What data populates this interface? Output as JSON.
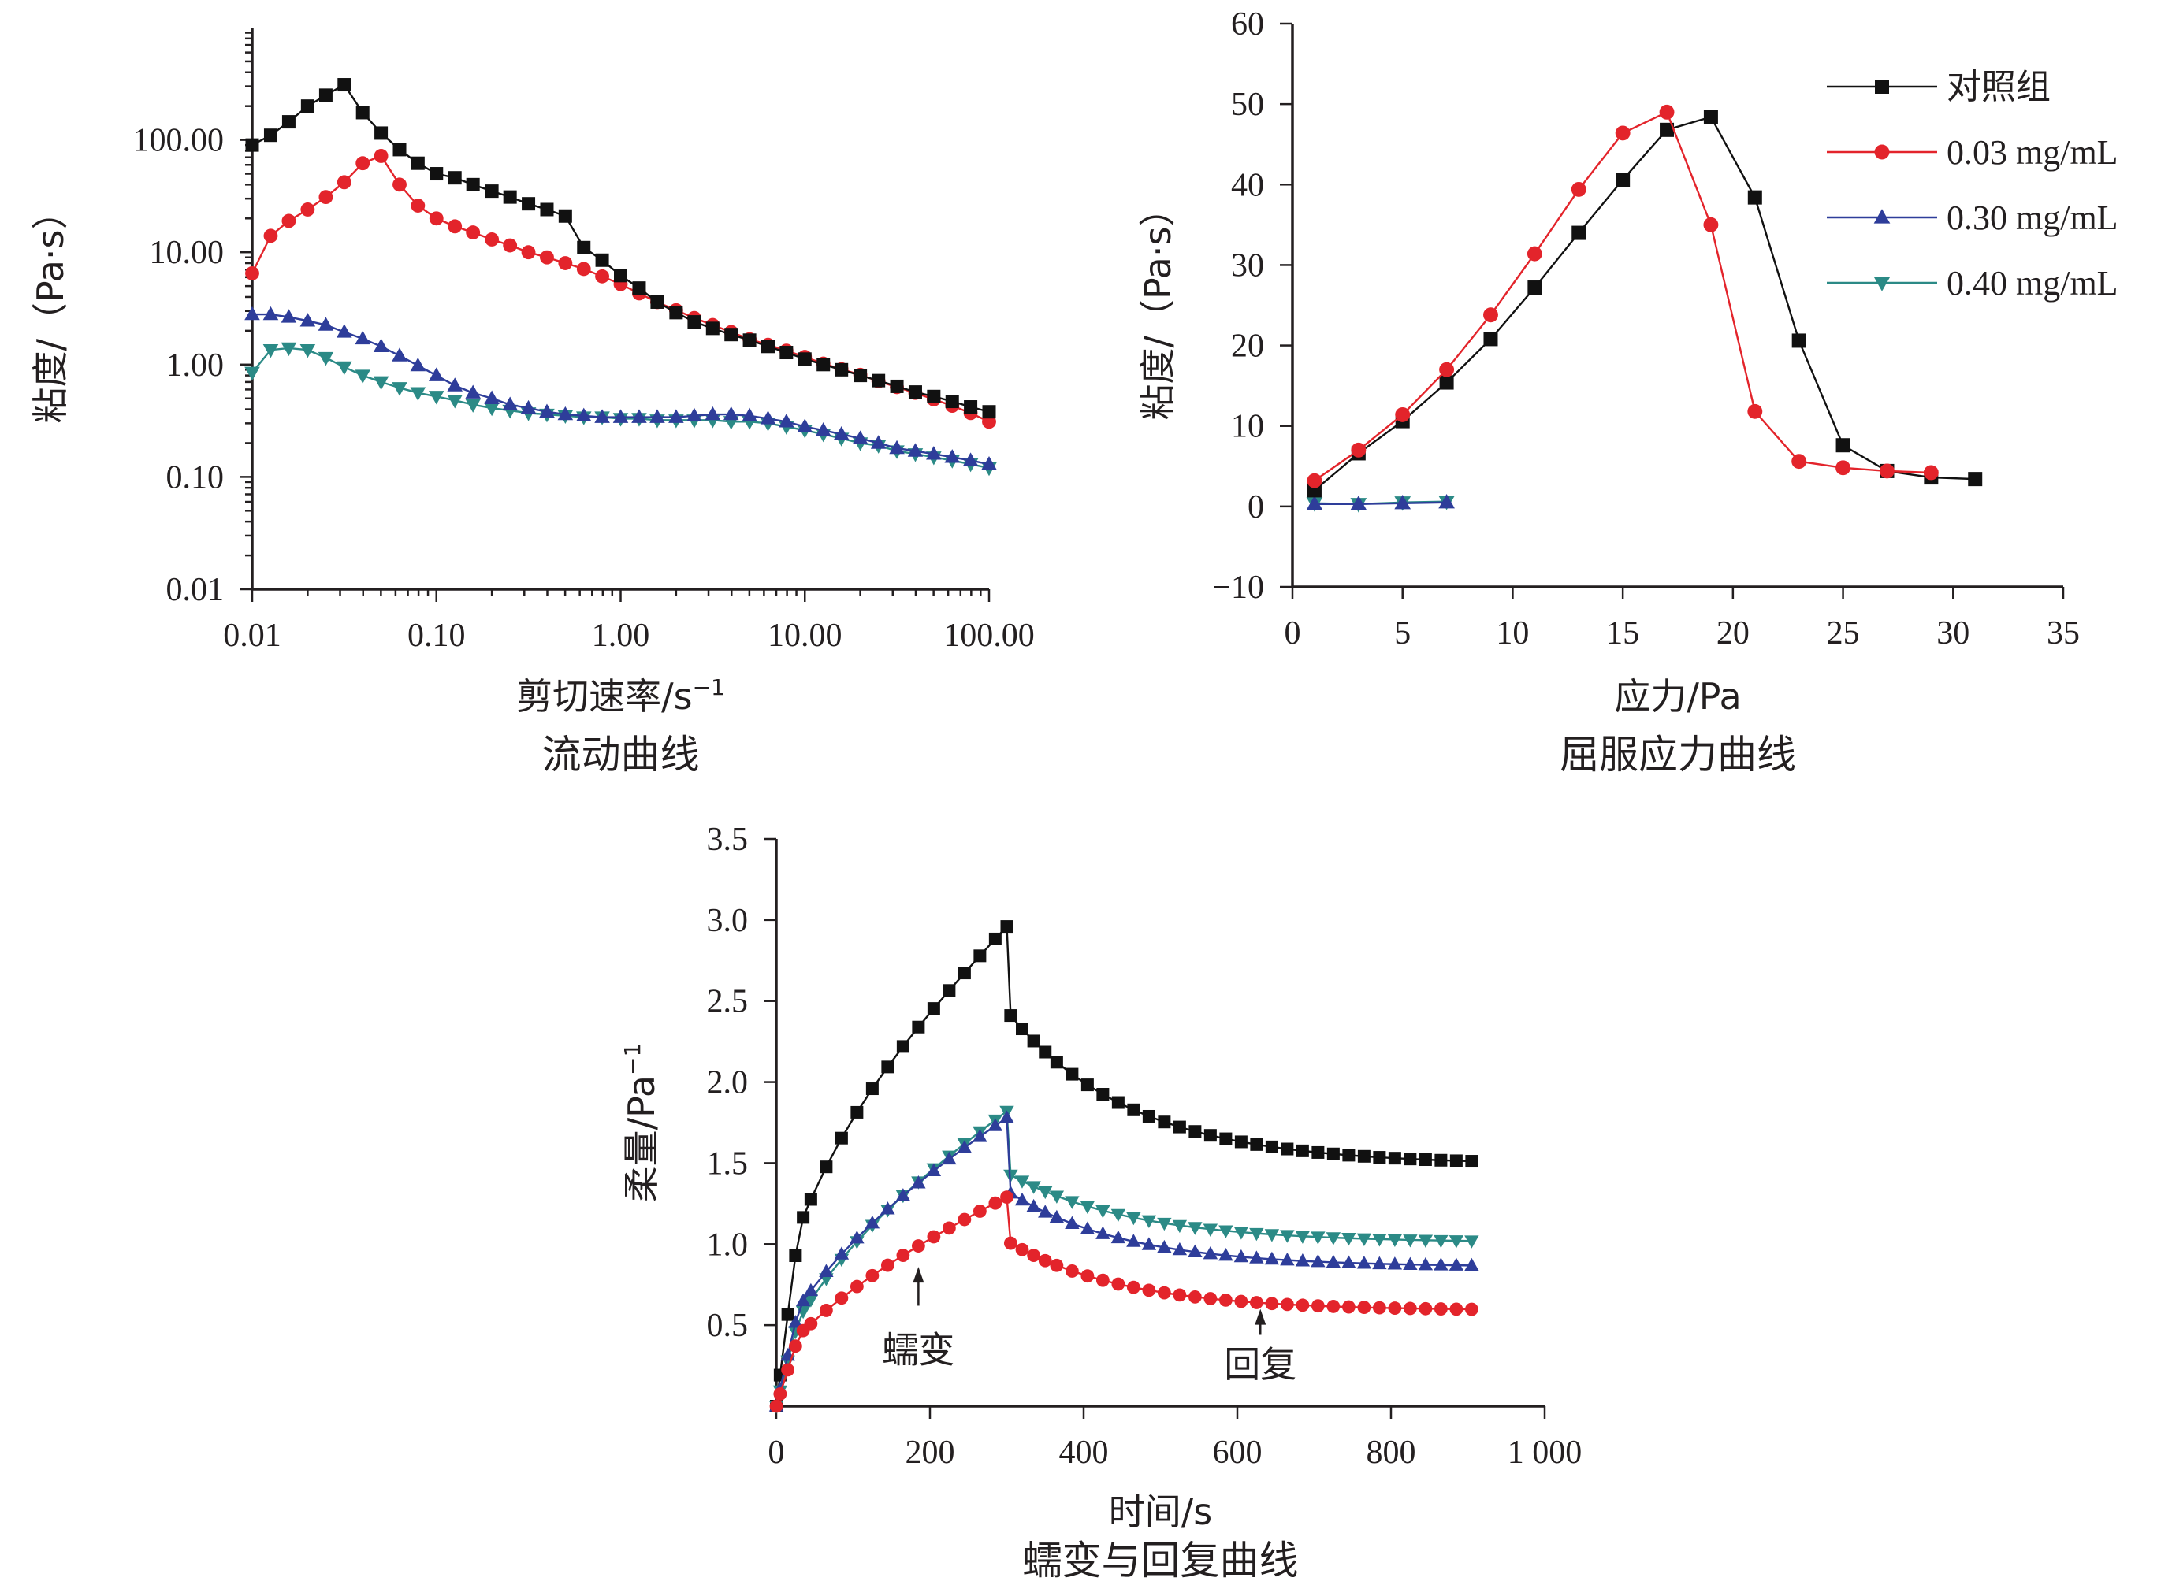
{
  "series_styles": [
    {
      "key": "control",
      "color": "#111111",
      "marker": "square"
    },
    {
      "key": "c003",
      "color": "#e3242b",
      "marker": "circle"
    },
    {
      "key": "c030",
      "color": "#2e3d9a",
      "marker": "triangle-up"
    },
    {
      "key": "c040",
      "color": "#2b8a86",
      "marker": "triangle-down"
    }
  ],
  "chart_data": [
    {
      "id": "flow",
      "type": "line",
      "xscale": "log",
      "yscale": "log",
      "xlabel_main": "剪切速率/s",
      "xlabel_sup": "−1",
      "ylabel": "粘度/（Pa·s）",
      "caption": "流动曲线",
      "xlim": [
        0.01,
        100
      ],
      "ylim": [
        0.01,
        1000
      ],
      "xticks": [
        0.01,
        0.1,
        1,
        10,
        100
      ],
      "xticklabels": [
        "0.01",
        "0.10",
        "1.00",
        "10.00",
        "100.00"
      ],
      "yticks": [
        0.01,
        0.1,
        1,
        10,
        100
      ],
      "yticklabels": [
        "0.01",
        "0.10",
        "1.00",
        "10.00",
        "100.00"
      ],
      "x": [
        0.01,
        0.0126,
        0.0158,
        0.02,
        0.0251,
        0.0316,
        0.0398,
        0.0501,
        0.0631,
        0.0794,
        0.1,
        0.126,
        0.158,
        0.2,
        0.251,
        0.316,
        0.398,
        0.501,
        0.631,
        0.794,
        1.0,
        1.26,
        1.58,
        2.0,
        2.51,
        3.16,
        3.98,
        5.01,
        6.31,
        7.94,
        10.0,
        12.6,
        15.8,
        20.0,
        25.1,
        31.6,
        39.8,
        50.1,
        63.1,
        79.4,
        100.0
      ],
      "series": [
        {
          "name": "对照组",
          "values": [
            90,
            110,
            145,
            200,
            250,
            310,
            175,
            115,
            82,
            62,
            50,
            46,
            40,
            35,
            31,
            27,
            24,
            21,
            11,
            8.5,
            6.2,
            4.8,
            3.6,
            2.9,
            2.4,
            2.1,
            1.85,
            1.65,
            1.45,
            1.28,
            1.12,
            1.0,
            0.9,
            0.8,
            0.72,
            0.64,
            0.57,
            0.52,
            0.47,
            0.42,
            0.38
          ]
        },
        {
          "name": "0.03 mg/mL",
          "values": [
            6.5,
            14,
            19,
            24,
            31,
            42,
            62,
            72,
            40,
            26,
            20,
            17,
            15,
            13,
            11.5,
            10,
            9,
            8,
            7.1,
            6.1,
            5.2,
            4.3,
            3.6,
            3.05,
            2.6,
            2.25,
            1.95,
            1.68,
            1.5,
            1.33,
            1.17,
            1.02,
            0.91,
            0.81,
            0.71,
            0.63,
            0.56,
            0.49,
            0.43,
            0.37,
            0.31
          ]
        },
        {
          "name": "0.30 mg/mL",
          "values": [
            2.8,
            2.8,
            2.65,
            2.45,
            2.25,
            1.95,
            1.7,
            1.45,
            1.2,
            0.98,
            0.8,
            0.65,
            0.56,
            0.5,
            0.44,
            0.41,
            0.38,
            0.36,
            0.35,
            0.34,
            0.34,
            0.34,
            0.34,
            0.34,
            0.35,
            0.36,
            0.36,
            0.35,
            0.33,
            0.31,
            0.28,
            0.26,
            0.24,
            0.22,
            0.2,
            0.18,
            0.17,
            0.16,
            0.15,
            0.14,
            0.13
          ]
        },
        {
          "name": "0.40 mg/mL",
          "values": [
            0.85,
            1.35,
            1.4,
            1.35,
            1.15,
            0.95,
            0.8,
            0.7,
            0.62,
            0.56,
            0.52,
            0.48,
            0.44,
            0.41,
            0.39,
            0.37,
            0.36,
            0.35,
            0.34,
            0.34,
            0.33,
            0.33,
            0.32,
            0.32,
            0.32,
            0.32,
            0.31,
            0.31,
            0.3,
            0.28,
            0.26,
            0.24,
            0.22,
            0.2,
            0.19,
            0.17,
            0.16,
            0.15,
            0.14,
            0.13,
            0.12
          ]
        }
      ]
    },
    {
      "id": "yield",
      "type": "line",
      "xlabel": "应力/Pa",
      "ylabel": "粘度/（Pa·s）",
      "caption": "屈服应力曲线",
      "xlim": [
        0,
        35
      ],
      "ylim": [
        -10,
        60
      ],
      "xticks": [
        0,
        5,
        10,
        15,
        20,
        25,
        30,
        35
      ],
      "xticklabels": [
        "0",
        "5",
        "10",
        "15",
        "20",
        "25",
        "30",
        "35"
      ],
      "yticks": [
        -10,
        0,
        10,
        20,
        30,
        40,
        50,
        60
      ],
      "yticklabels": [
        "−10",
        "0",
        "10",
        "20",
        "30",
        "40",
        "50",
        "60"
      ],
      "legend": {
        "position": "top-right",
        "entries": [
          "对照组",
          "0.03 mg/mL",
          "0.30 mg/mL",
          "0.40 mg/mL"
        ]
      },
      "series": [
        {
          "name": "对照组",
          "x": [
            1,
            3,
            5,
            7,
            9,
            11,
            13,
            15,
            17,
            19,
            21,
            23,
            25,
            27,
            29,
            31
          ],
          "values": [
            2,
            6.6,
            10.6,
            15.4,
            20.8,
            27.2,
            34,
            40.6,
            46.8,
            48.4,
            38.4,
            20.6,
            7.6,
            4.4,
            3.6,
            3.4
          ]
        },
        {
          "name": "0.03 mg/mL",
          "x": [
            1,
            3,
            5,
            7,
            9,
            11,
            13,
            15,
            17,
            19,
            21,
            23,
            25,
            27,
            29
          ],
          "values": [
            3.2,
            7,
            11.4,
            17,
            23.8,
            31.4,
            39.4,
            46.4,
            49,
            35,
            11.8,
            5.6,
            4.8,
            4.4,
            4.2
          ]
        },
        {
          "name": "0.30 mg/mL",
          "x": [
            1,
            3,
            5,
            7
          ],
          "values": [
            0.3,
            0.3,
            0.4,
            0.5
          ]
        },
        {
          "name": "0.40 mg/mL",
          "x": [
            1,
            3,
            5,
            7
          ],
          "values": [
            0.4,
            0.3,
            0.5,
            0.6
          ]
        }
      ]
    },
    {
      "id": "creep",
      "type": "line",
      "xlabel": "时间/s",
      "ylabel_main": "柔量/Pa",
      "ylabel_sup": "−1",
      "caption": "蠕变与回复曲线",
      "xlim": [
        0,
        1000
      ],
      "ylim": [
        0,
        3.5
      ],
      "xticks": [
        0,
        200,
        400,
        600,
        800,
        1000
      ],
      "xticklabels": [
        "0",
        "200",
        "400",
        "600",
        "800",
        "1 000"
      ],
      "yticks": [
        0.5,
        1.0,
        1.5,
        2.0,
        2.5,
        3.0,
        3.5
      ],
      "yticklabels": [
        "0.5",
        "1.0",
        "1.5",
        "2.0",
        "2.5",
        "3.0",
        "3.5"
      ],
      "annotations": [
        {
          "text": "蠕变",
          "x": 185,
          "y_text": 0.27,
          "arrow_from": 0.62,
          "arrow_to": 0.86
        },
        {
          "text": "回复",
          "x": 630,
          "y_text": 0.18,
          "arrow_from": 0.44,
          "arrow_to": 0.6
        }
      ],
      "series": [
        {
          "name": "对照组",
          "shape": {
            "a": 0.7,
            "k": 0.0129,
            "x0": 300,
            "peak": 2.96,
            "recover": 1.49,
            "tau": 160,
            "drop": 0.52
          }
        },
        {
          "name": "0.03 mg/mL",
          "shape": {
            "a": 0.3,
            "k": 0.0077,
            "x0": 300,
            "peak": 1.29,
            "recover": 0.59,
            "tau": 150,
            "drop": 0.27
          }
        },
        {
          "name": "0.30 mg/mL",
          "shape": {
            "a": 0.4,
            "k": 0.0095,
            "x0": 300,
            "peak": 1.78,
            "recover": 0.86,
            "tau": 150,
            "drop": 0.45
          }
        },
        {
          "name": "0.40 mg/mL",
          "shape": {
            "a": 0.3,
            "k": 0.0104,
            "x0": 300,
            "peak": 1.82,
            "recover": 1.01,
            "tau": 160,
            "drop": 0.38
          }
        }
      ]
    }
  ]
}
